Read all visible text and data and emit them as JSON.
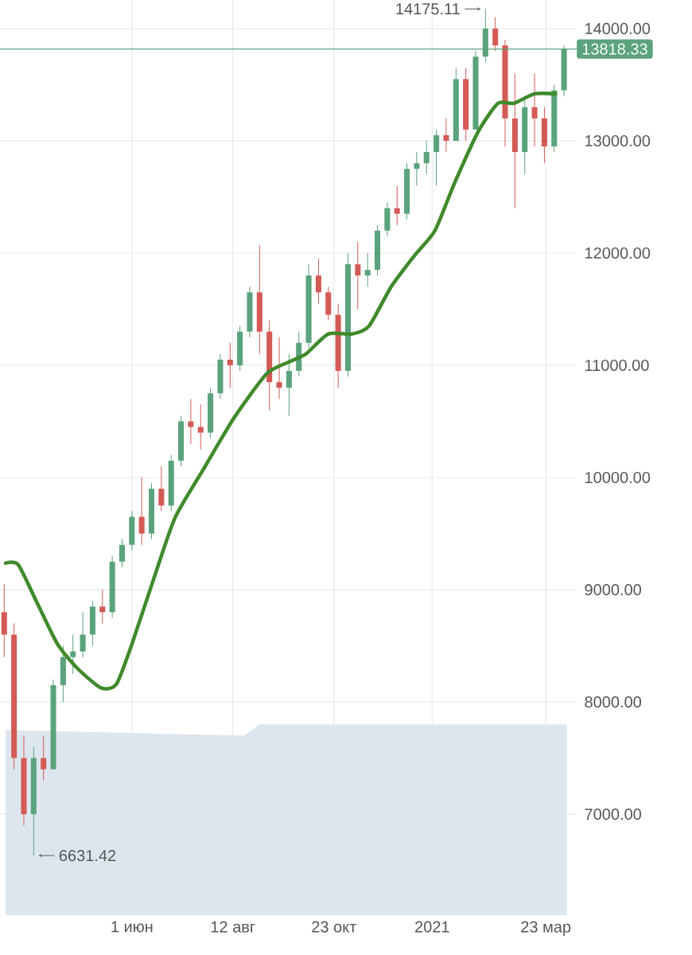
{
  "chart_data": {
    "type": "candlestick",
    "xlim": [
      "2020-02-28",
      "2021-04-14"
    ],
    "xticks": [
      {
        "value": "2020-06-01",
        "label": "1 июн"
      },
      {
        "value": "2020-08-12",
        "label": "12 авг"
      },
      {
        "value": "2020-10-23",
        "label": "23 окт"
      },
      {
        "value": "2021-01-01",
        "label": "2021"
      },
      {
        "value": "2021-03-23",
        "label": "23 мар"
      }
    ],
    "ylim": [
      6100,
      14255
    ],
    "yticks": [
      {
        "value": 7000,
        "label": "7000.00"
      },
      {
        "value": 8000,
        "label": "8000.00"
      },
      {
        "value": 9000,
        "label": "9000.00"
      },
      {
        "value": 10000,
        "label": "10000.00"
      },
      {
        "value": 11000,
        "label": "11000.00"
      },
      {
        "value": 12000,
        "label": "12000.00"
      },
      {
        "value": 13000,
        "label": "13000.00"
      },
      {
        "value": 14000,
        "label": "14000.00"
      }
    ],
    "grid": true,
    "series": [
      {
        "type": "area",
        "color": "#dde6ef",
        "x": [
          "2020-03-03",
          "2020-08-20",
          "2020-08-31",
          "2021-04-07"
        ],
        "values": [
          7750,
          7700,
          7800,
          7800
        ]
      },
      {
        "x": [
          "2020-03-02",
          "2020-03-09",
          "2020-03-16",
          "2020-03-23",
          "2020-03-30",
          "2020-04-06",
          "2020-04-13",
          "2020-04-20",
          "2020-04-27",
          "2020-05-04",
          "2020-05-11",
          "2020-05-18",
          "2020-05-25",
          "2020-06-01",
          "2020-06-08",
          "2020-06-15",
          "2020-06-22",
          "2020-06-29",
          "2020-07-06",
          "2020-07-13",
          "2020-07-20",
          "2020-07-27",
          "2020-08-03",
          "2020-08-10",
          "2020-08-17",
          "2020-08-24",
          "2020-08-31",
          "2020-09-07",
          "2020-09-14",
          "2020-09-21",
          "2020-09-28",
          "2020-10-05",
          "2020-10-12",
          "2020-10-19",
          "2020-10-26",
          "2020-11-02",
          "2020-11-09",
          "2020-11-16",
          "2020-11-23",
          "2020-11-30",
          "2020-12-07",
          "2020-12-14",
          "2020-12-21",
          "2020-12-28",
          "2021-01-04",
          "2021-01-11",
          "2021-01-18",
          "2021-01-25",
          "2021-02-01",
          "2021-02-08",
          "2021-02-15",
          "2021-02-22",
          "2021-03-01",
          "2021-03-08",
          "2021-03-15",
          "2021-03-22",
          "2021-03-29",
          "2021-04-05"
        ],
        "ohlc": [
          [
            8800,
            9050,
            8400,
            8600
          ],
          [
            8600,
            8700,
            7400,
            7500
          ],
          [
            7500,
            7700,
            6900,
            7000
          ],
          [
            7000,
            7600,
            6631.42,
            7500
          ],
          [
            7500,
            7700,
            7300,
            7400
          ],
          [
            7400,
            8200,
            7400,
            8150
          ],
          [
            8150,
            8500,
            8000,
            8400
          ],
          [
            8400,
            8600,
            8250,
            8450
          ],
          [
            8450,
            8800,
            8400,
            8600
          ],
          [
            8600,
            8900,
            8500,
            8850
          ],
          [
            8850,
            9000,
            8700,
            8800
          ],
          [
            8800,
            9300,
            8750,
            9250
          ],
          [
            9250,
            9450,
            9200,
            9400
          ],
          [
            9400,
            9700,
            9350,
            9650
          ],
          [
            9650,
            10000,
            9400,
            9500
          ],
          [
            9500,
            9950,
            9450,
            9900
          ],
          [
            9900,
            10100,
            9700,
            9750
          ],
          [
            9750,
            10200,
            9700,
            10150
          ],
          [
            10150,
            10550,
            10100,
            10500
          ],
          [
            10500,
            10700,
            10300,
            10450
          ],
          [
            10450,
            10650,
            10250,
            10400
          ],
          [
            10400,
            10800,
            10350,
            10750
          ],
          [
            10750,
            11100,
            10700,
            11050
          ],
          [
            11050,
            11200,
            10800,
            11000
          ],
          [
            11000,
            11350,
            10950,
            11300
          ],
          [
            11300,
            11700,
            11250,
            11650
          ],
          [
            11650,
            12070,
            11100,
            11300
          ],
          [
            11300,
            11400,
            10600,
            10850
          ],
          [
            10850,
            11250,
            10700,
            10800
          ],
          [
            10800,
            11100,
            10550,
            10950
          ],
          [
            10950,
            11300,
            10900,
            11200
          ],
          [
            11200,
            11900,
            11150,
            11800
          ],
          [
            11800,
            11950,
            11550,
            11650
          ],
          [
            11650,
            11700,
            11400,
            11450
          ],
          [
            11450,
            11550,
            10800,
            10950
          ],
          [
            10950,
            12000,
            10900,
            11900
          ],
          [
            11900,
            12100,
            11500,
            11800
          ],
          [
            11800,
            12000,
            11700,
            11850
          ],
          [
            11850,
            12250,
            11800,
            12200
          ],
          [
            12200,
            12450,
            12150,
            12400
          ],
          [
            12400,
            12600,
            12250,
            12350
          ],
          [
            12350,
            12800,
            12300,
            12750
          ],
          [
            12750,
            12900,
            12600,
            12800
          ],
          [
            12800,
            13000,
            12700,
            12900
          ],
          [
            12900,
            13100,
            12600,
            13050
          ],
          [
            13050,
            13200,
            12900,
            13000
          ],
          [
            13000,
            13650,
            13000,
            13550
          ],
          [
            13550,
            13650,
            13000,
            13100
          ],
          [
            13100,
            13800,
            13100,
            13750
          ],
          [
            13750,
            14175.11,
            13700,
            14000
          ],
          [
            14000,
            14100,
            13800,
            13850
          ],
          [
            13850,
            13900,
            12950,
            13200
          ],
          [
            13200,
            13600,
            12400,
            12900
          ],
          [
            12900,
            13400,
            12700,
            13300
          ],
          [
            13300,
            13600,
            12950,
            13200
          ],
          [
            13200,
            13300,
            12800,
            12950
          ],
          [
            12950,
            13500,
            12900,
            13450
          ],
          [
            13450,
            13850,
            13400,
            13818.33
          ]
        ],
        "colors": [
          "#d45a55",
          "#d45a55",
          "#d45a55",
          "#5aa37c",
          "#d45a55",
          "#5aa37c",
          "#5aa37c",
          "#5aa37c",
          "#5aa37c",
          "#5aa37c",
          "#d45a55",
          "#5aa37c",
          "#5aa37c",
          "#5aa37c",
          "#d45a55",
          "#5aa37c",
          "#d45a55",
          "#5aa37c",
          "#5aa37c",
          "#d45a55",
          "#d45a55",
          "#5aa37c",
          "#5aa37c",
          "#d45a55",
          "#5aa37c",
          "#5aa37c",
          "#d45a55",
          "#d45a55",
          "#d45a55",
          "#5aa37c",
          "#5aa37c",
          "#5aa37c",
          "#d45a55",
          "#d45a55",
          "#d45a55",
          "#5aa37c",
          "#d45a55",
          "#5aa37c",
          "#5aa37c",
          "#5aa37c",
          "#d45a55",
          "#5aa37c",
          "#5aa37c",
          "#5aa37c",
          "#5aa37c",
          "#d45a55",
          "#5aa37c",
          "#d45a55",
          "#5aa37c",
          "#5aa37c",
          "#d45a55",
          "#d45a55",
          "#d45a55",
          "#5aa37c",
          "#d45a55",
          "#d45a55",
          "#5aa37c",
          "#5aa37c"
        ]
      },
      {
        "type": "line",
        "color": "#3f8a2a",
        "x": [
          "2020-03-03",
          "2020-03-12",
          "2020-03-26",
          "2020-04-09",
          "2020-04-23",
          "2020-05-10",
          "2020-05-21",
          "2020-06-01",
          "2020-06-18",
          "2020-07-02",
          "2020-07-22",
          "2020-08-13",
          "2020-09-05",
          "2020-09-21",
          "2020-10-03",
          "2020-10-19",
          "2020-11-05",
          "2020-11-17",
          "2020-12-03",
          "2020-12-20",
          "2021-01-03",
          "2021-01-17",
          "2021-02-03",
          "2021-02-17",
          "2021-02-28",
          "2021-03-15",
          "2021-03-30"
        ],
        "values": [
          9237,
          9223,
          8869,
          8515,
          8302,
          8125,
          8160,
          8515,
          9152,
          9648,
          10074,
          10535,
          10924,
          11030,
          11101,
          11279,
          11279,
          11350,
          11704,
          11987,
          12200,
          12625,
          13086,
          13334,
          13334,
          13419,
          13419
        ]
      }
    ],
    "ref_lines": [
      {
        "axis": "y",
        "value": 13818.33,
        "label": "13818.33",
        "color": "#5aa37c"
      }
    ],
    "annotations": [
      {
        "text": "14175.11",
        "x": "2021-02-08",
        "y": 14175.11
      },
      {
        "text": "6631.42",
        "x": "2020-03-23",
        "y": 6631.42
      }
    ]
  }
}
